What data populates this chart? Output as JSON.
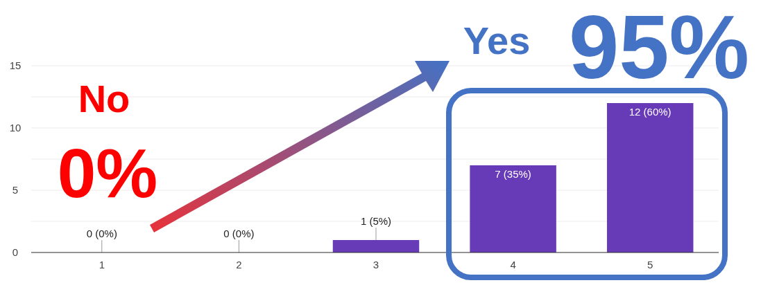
{
  "chart_data": {
    "type": "bar",
    "categories": [
      "1",
      "2",
      "3",
      "4",
      "5"
    ],
    "values": [
      0,
      0,
      1,
      7,
      12
    ],
    "value_labels": [
      "0 (0%)",
      "0 (0%)",
      "1 (5%)",
      "7 (35%)",
      "12 (60%)"
    ],
    "color": "#673ab7",
    "ylim": [
      0,
      15
    ],
    "yticks": [
      0,
      {
        "value": 2.5,
        "label": null
      },
      5,
      {
        "value": 7.5,
        "label": null
      },
      10,
      {
        "value": 12.5,
        "label": null
      },
      15
    ],
    "grid": "y",
    "annotations": [
      "No",
      "0%",
      "Yes",
      "95%"
    ]
  }
}
